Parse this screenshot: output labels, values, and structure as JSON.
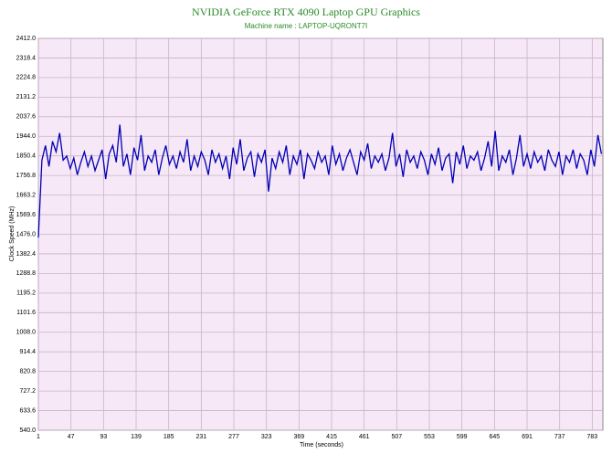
{
  "chart_data": {
    "type": "line",
    "title": "NVIDIA GeForce RTX 4090 Laptop GPU Graphics",
    "subtitle": "Machine name : LAPTOP-UQRONT7I",
    "x_label": "Time (seconds)",
    "y_label": "Clock Speed (MHz)",
    "grid": true,
    "xlim": [
      1,
      798
    ],
    "ylim": [
      540,
      2412
    ],
    "xticks": [
      1,
      47,
      93,
      139,
      185,
      231,
      277,
      323,
      369,
      415,
      461,
      507,
      553,
      599,
      645,
      691,
      737,
      783
    ],
    "yticks": [
      {
        "value": 540,
        "label": "540.0"
      },
      {
        "value": 633.6,
        "label": "633.6"
      },
      {
        "value": 727.2,
        "label": "727.2"
      },
      {
        "value": 820.8,
        "label": "820.8"
      },
      {
        "value": 914.4,
        "label": "914.4"
      },
      {
        "value": 1008,
        "label": "1008.0"
      },
      {
        "value": 1101.6,
        "label": "1101.6"
      },
      {
        "value": 1195.2,
        "label": "1195.2"
      },
      {
        "value": 1288.8,
        "label": "1288.8"
      },
      {
        "value": 1382.4,
        "label": "1382.4"
      },
      {
        "value": 1476,
        "label": "1476.0"
      },
      {
        "value": 1569.6,
        "label": "1569.6"
      },
      {
        "value": 1663.2,
        "label": "1663.2"
      },
      {
        "value": 1756.8,
        "label": "1756.8"
      },
      {
        "value": 1850.4,
        "label": "1850.4"
      },
      {
        "value": 1944,
        "label": "1944.0"
      },
      {
        "value": 2037.6,
        "label": "2037.6"
      },
      {
        "value": 2131.2,
        "label": "2131.2"
      },
      {
        "value": 2224.8,
        "label": "2224.8"
      },
      {
        "value": 2318.4,
        "label": "2318.4"
      },
      {
        "value": 2412,
        "label": "2412.0"
      }
    ],
    "x": [
      1,
      6,
      11,
      16,
      21,
      26,
      31,
      36,
      41,
      46,
      51,
      56,
      61,
      66,
      71,
      76,
      81,
      86,
      91,
      96,
      101,
      106,
      111,
      116,
      121,
      126,
      131,
      136,
      141,
      146,
      151,
      156,
      161,
      166,
      171,
      176,
      181,
      186,
      191,
      196,
      201,
      206,
      211,
      216,
      221,
      226,
      231,
      236,
      241,
      246,
      251,
      256,
      261,
      266,
      271,
      276,
      281,
      286,
      291,
      296,
      301,
      306,
      311,
      316,
      321,
      326,
      331,
      336,
      341,
      346,
      351,
      356,
      361,
      366,
      371,
      376,
      381,
      386,
      391,
      396,
      401,
      406,
      411,
      416,
      421,
      426,
      431,
      436,
      441,
      446,
      451,
      456,
      461,
      466,
      471,
      476,
      481,
      486,
      491,
      496,
      501,
      506,
      511,
      516,
      521,
      526,
      531,
      536,
      541,
      546,
      551,
      556,
      561,
      566,
      571,
      576,
      581,
      586,
      591,
      596,
      601,
      606,
      611,
      616,
      621,
      626,
      631,
      636,
      641,
      646,
      651,
      656,
      661,
      666,
      671,
      676,
      681,
      686,
      691,
      696,
      701,
      706,
      711,
      716,
      721,
      726,
      731,
      736,
      741,
      746,
      751,
      756,
      761,
      766,
      771,
      776,
      781,
      786,
      791,
      796
    ],
    "series": [
      {
        "color": "#0000b4",
        "values": [
          1460,
          1830,
          1900,
          1800,
          1920,
          1870,
          1960,
          1830,
          1850,
          1790,
          1840,
          1760,
          1820,
          1870,
          1800,
          1850,
          1780,
          1830,
          1880,
          1740,
          1860,
          1900,
          1820,
          2000,
          1800,
          1860,
          1760,
          1890,
          1830,
          1950,
          1780,
          1850,
          1820,
          1880,
          1760,
          1840,
          1900,
          1810,
          1850,
          1790,
          1870,
          1820,
          1930,
          1780,
          1850,
          1800,
          1870,
          1830,
          1760,
          1880,
          1820,
          1860,
          1790,
          1850,
          1740,
          1890,
          1810,
          1930,
          1780,
          1840,
          1870,
          1750,
          1860,
          1820,
          1880,
          1680,
          1840,
          1790,
          1870,
          1820,
          1900,
          1760,
          1850,
          1810,
          1880,
          1740,
          1860,
          1830,
          1790,
          1870,
          1820,
          1850,
          1760,
          1900,
          1810,
          1860,
          1780,
          1840,
          1880,
          1820,
          1760,
          1870,
          1830,
          1910,
          1790,
          1850,
          1820,
          1860,
          1780,
          1840,
          1960,
          1800,
          1860,
          1750,
          1880,
          1820,
          1850,
          1790,
          1870,
          1830,
          1760,
          1860,
          1810,
          1890,
          1780,
          1840,
          1860,
          1720,
          1870,
          1810,
          1900,
          1790,
          1850,
          1830,
          1870,
          1780,
          1840,
          1920,
          1800,
          1970,
          1780,
          1850,
          1820,
          1880,
          1760,
          1840,
          1950,
          1800,
          1860,
          1790,
          1870,
          1820,
          1850,
          1780,
          1880,
          1830,
          1800,
          1870,
          1760,
          1850,
          1820,
          1880,
          1790,
          1860,
          1830,
          1760,
          1880,
          1800,
          1950,
          1860
        ]
      }
    ]
  }
}
